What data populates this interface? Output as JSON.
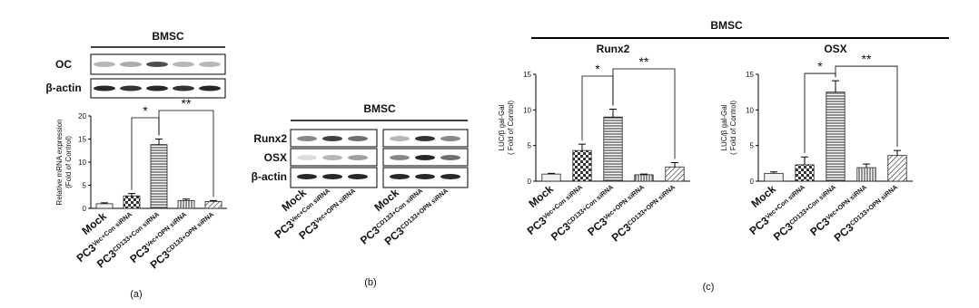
{
  "panel_a": {
    "label": "(a)",
    "blot_title": "BMSC",
    "blot_rows": [
      "OC",
      "β-actin"
    ]
  },
  "panel_b": {
    "label": "(b)",
    "title": "BMSC",
    "blot_rows": [
      "Runx2",
      "OSX",
      "β-actin"
    ],
    "lanes": [
      "Mock",
      "PC3Vec+Con siRNA",
      "PC3Vec+OPN siRNA",
      "Mock",
      "PC3CD133+Con siRNA",
      "PC3CD133+OPN siRNA"
    ]
  },
  "panel_c": {
    "label": "(c)",
    "title": "BMSC"
  },
  "chart_data": [
    {
      "type": "bar",
      "y_label": [
        "Relative mRNA expression",
        "(Fold of Control)"
      ],
      "categories": [
        "Mock",
        "PC3Vec+Con siRNA",
        "PC3CD133+Con siRNA",
        "PC3Vec+OPN siRNA",
        "PC3CD133+OPN siRNA"
      ],
      "values": [
        1,
        2.7,
        13.8,
        1.7,
        1.5
      ],
      "errors": [
        0.2,
        0.5,
        1.2,
        0.3,
        0.2
      ],
      "ylim": [
        0,
        20
      ],
      "yticks": [
        0,
        5,
        10,
        15,
        20
      ],
      "annotations": [
        "*",
        "**"
      ]
    },
    {
      "type": "bar",
      "title": "Runx2",
      "y_label": [
        "LUC/β gal-Gal",
        "( Fold of Control)"
      ],
      "categories": [
        "Mock",
        "PC3Vec+Con siRNA",
        "PC3CD133+Con siRNA",
        "PC3Vec+OPN siRNA",
        "PC3CD133+OPN siRNA"
      ],
      "values": [
        1,
        4.3,
        9,
        0.9,
        2
      ],
      "errors": [
        0.1,
        0.9,
        1.1,
        0.1,
        0.6
      ],
      "ylim": [
        0,
        15
      ],
      "yticks": [
        0,
        5,
        10,
        15
      ],
      "annotations": [
        "*",
        "**"
      ]
    },
    {
      "type": "bar",
      "title": "OSX",
      "y_label": [
        "LUC/β gal-Gal",
        "( Fold of Control)"
      ],
      "categories": [
        "Mock",
        "PC3Vec+Con siRNA",
        "PC3CD133+Con siRNA",
        "PC3Vec+OPN siRNA",
        "PC3CD133+OPN siRNA"
      ],
      "values": [
        1.1,
        2.3,
        12.5,
        1.9,
        3.6
      ],
      "errors": [
        0.2,
        1.1,
        1.6,
        0.5,
        0.7
      ],
      "ylim": [
        0,
        15
      ],
      "yticks": [
        0,
        5,
        10,
        15
      ],
      "annotations": [
        "*",
        "**"
      ]
    }
  ]
}
